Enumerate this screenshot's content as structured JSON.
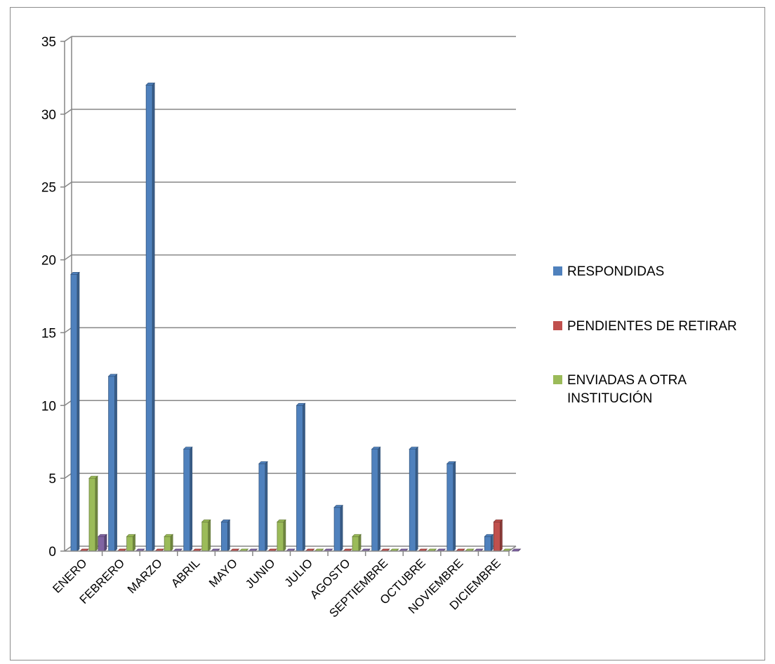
{
  "chart_data": {
    "type": "bar",
    "title": "",
    "xlabel": "",
    "ylabel": "",
    "ylim": [
      0,
      35
    ],
    "yticks": [
      0,
      5,
      10,
      15,
      20,
      25,
      30,
      35
    ],
    "grid": true,
    "legend_position": "right",
    "categories": [
      "ENERO",
      "FEBRERO",
      "MARZO",
      "ABRIL",
      "MAYO",
      "JUNIO",
      "JULIO",
      "AGOSTO",
      "SEPTIEMBRE",
      "OCTUBRE",
      "NOVIEMBRE",
      "DICIEMBRE"
    ],
    "series": [
      {
        "name": "RESPONDIDAS",
        "color": "#4f81bd",
        "values": [
          19,
          12,
          32,
          7,
          2,
          6,
          10,
          3,
          7,
          7,
          6,
          1
        ]
      },
      {
        "name": "PENDIENTES DE RETIRAR",
        "color": "#c0504d",
        "values": [
          0,
          0,
          0,
          0,
          0,
          0,
          0,
          0,
          0,
          0,
          0,
          2
        ]
      },
      {
        "name": "ENVIADAS A OTRA INSTITUCIÓN",
        "color": "#9bbb59",
        "values": [
          5,
          1,
          1,
          2,
          0,
          2,
          0,
          1,
          0,
          0,
          0,
          0
        ]
      },
      {
        "color": "#8064a2",
        "values": [
          1,
          0,
          0,
          0,
          0,
          0,
          0,
          0,
          0,
          0,
          0,
          0
        ]
      }
    ],
    "legend": [
      {
        "label": "RESPONDIDAS",
        "color": "#4f81bd"
      },
      {
        "label": "PENDIENTES DE RETIRAR",
        "color": "#c0504d"
      },
      {
        "label_lines": [
          "ENVIADAS A OTRA",
          "INSTITUCIÓN"
        ],
        "color": "#9bbb59"
      }
    ]
  }
}
